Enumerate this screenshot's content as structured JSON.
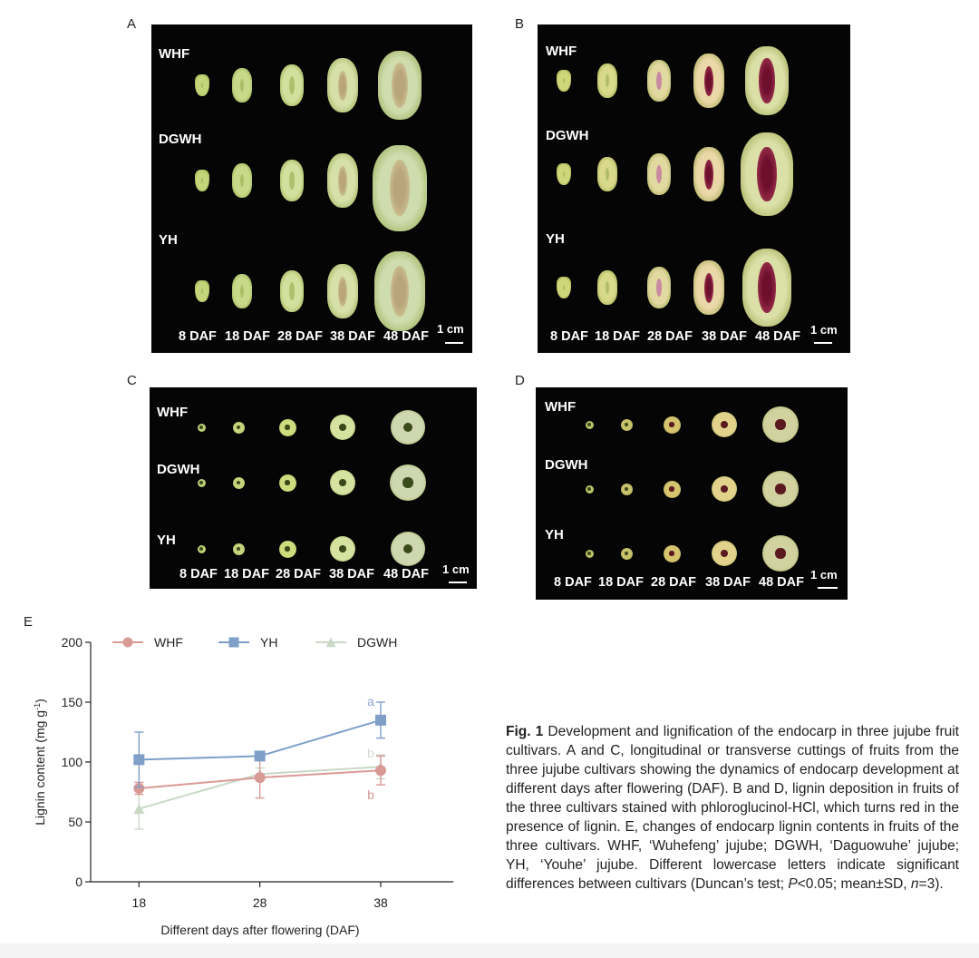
{
  "panels": {
    "A": {
      "letter": "A",
      "rows": [
        "WHF",
        "DGWH",
        "YH"
      ],
      "days": [
        "8 DAF",
        "18 DAF",
        "28 DAF",
        "38 DAF",
        "48 DAF"
      ],
      "scale": "1 cm"
    },
    "B": {
      "letter": "B",
      "rows": [
        "WHF",
        "DGWH",
        "YH"
      ],
      "days": [
        "8 DAF",
        "18 DAF",
        "28 DAF",
        "38 DAF",
        "48 DAF"
      ],
      "scale": "1 cm"
    },
    "C": {
      "letter": "C",
      "rows": [
        "WHF",
        "DGWH",
        "YH"
      ],
      "days": [
        "8 DAF",
        "18 DAF",
        "28 DAF",
        "38 DAF",
        "48 DAF"
      ],
      "scale": "1 cm"
    },
    "D": {
      "letter": "D",
      "rows": [
        "WHF",
        "DGWH",
        "YH"
      ],
      "days": [
        "8 DAF",
        "18 DAF",
        "28 DAF",
        "38 DAF",
        "48 DAF"
      ],
      "scale": "1 cm"
    }
  },
  "chart_data": {
    "type": "line",
    "panel_letter": "E",
    "xlabel": "Different days after flowering (DAF)",
    "ylabel": "Lignin content (mg g",
    "ylabel_sup": "-1",
    "ylabel_close": ")",
    "x": [
      18,
      28,
      38
    ],
    "x_tick_labels": [
      "18",
      "28",
      "38"
    ],
    "ylim": [
      0,
      200
    ],
    "y_ticks": [
      0,
      50,
      100,
      150,
      200
    ],
    "y_tick_labels": [
      "0",
      "50",
      "100",
      "150",
      "200"
    ],
    "legend_position": "top",
    "series": [
      {
        "name": "WHF",
        "values": [
          78,
          87,
          93
        ],
        "sd": [
          5,
          17,
          12
        ],
        "marker": "circle",
        "color": "#d99a96"
      },
      {
        "name": "YH",
        "values": [
          102,
          105,
          135
        ],
        "sd": [
          23,
          3,
          15
        ],
        "marker": "square",
        "color": "#7f9fc9"
      },
      {
        "name": "DGWH",
        "values": [
          61,
          90,
          96
        ],
        "sd": [
          17,
          5,
          10
        ],
        "marker": "triangle",
        "color": "#c9d9c6"
      }
    ],
    "annotations": [
      {
        "text": "a",
        "series": "YH",
        "x": 38,
        "y": 150,
        "color": "#8ea6cf"
      },
      {
        "text": "b",
        "series": "DGWH",
        "x": 38,
        "y": 107,
        "color": "#d4dfcf"
      },
      {
        "text": "b",
        "series": "WHF",
        "x": 38,
        "y": 72,
        "color": "#d99a96"
      }
    ]
  },
  "caption": {
    "fig": "Fig. 1",
    "text": " Development and lignification of the endocarp in three jujube fruit cultivars.  A and C, longitudinal or transverse cuttings of fruits from the three jujube cultivars showing the dynamics of endocarp development at different days after flowering (DAF). B and D,  lignin deposition in fruits of the three cultivars stained with phloroglucinol-HCl, which turns red in the presence of lignin.  E, changes of endocarp lignin contents in fruits of the three cultivars.  WHF, ‘Wuhefeng’ jujube; DGWH, ‘Daguowuhe’ jujube; YH, ‘Youhe’ jujube.  Different lowercase letters indicate significant differences between cultivars (Duncan’s test; ",
    "p_label": "P",
    "p_value": "<0.05; mean±SD, ",
    "n_label": "n",
    "n_value": "=3)."
  }
}
